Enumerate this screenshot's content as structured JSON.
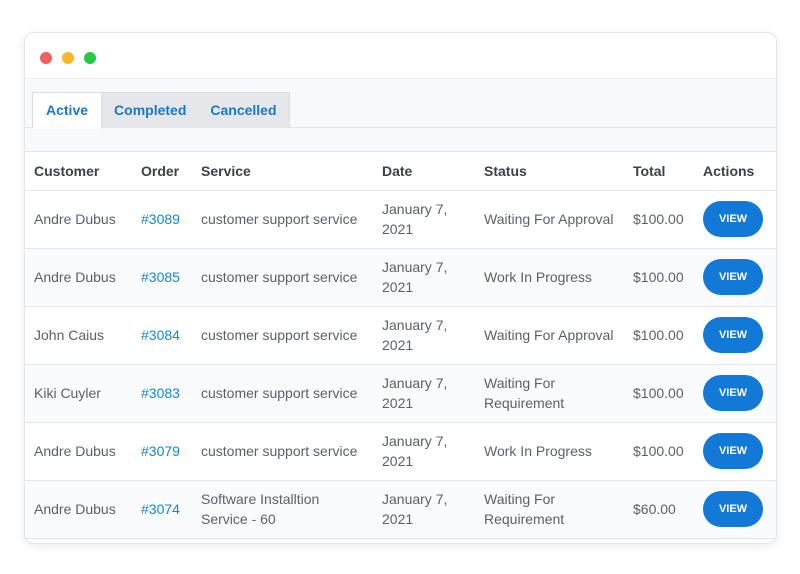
{
  "colors": {
    "dot_red": "#ef5f62",
    "dot_yellow": "#f5b82b",
    "dot_green": "#27c84a",
    "accent": "#1279d6",
    "link": "#1a86cf"
  },
  "tabs": [
    {
      "label": "Active"
    },
    {
      "label": "Completed"
    },
    {
      "label": "Cancelled"
    }
  ],
  "table": {
    "headers": {
      "customer": "Customer",
      "order": "Order",
      "service": "Service",
      "date": "Date",
      "status": "Status",
      "total": "Total",
      "actions": "Actions"
    },
    "rows": [
      {
        "customer": "Andre Dubus",
        "order": "#3089",
        "service": "customer support service",
        "date": "January 7, 2021",
        "status": "Waiting For Approval",
        "total": "$100.00",
        "action": "VIEW"
      },
      {
        "customer": "Andre Dubus",
        "order": "#3085",
        "service": "customer support service",
        "date": "January 7, 2021",
        "status": "Work In Progress",
        "total": "$100.00",
        "action": "VIEW"
      },
      {
        "customer": "John Caius",
        "order": "#3084",
        "service": "customer support service",
        "date": "January 7, 2021",
        "status": "Waiting For Approval",
        "total": "$100.00",
        "action": "VIEW"
      },
      {
        "customer": "Kiki Cuyler",
        "order": "#3083",
        "service": "customer support service",
        "date": "January 7, 2021",
        "status": "Waiting For Requirement",
        "total": "$100.00",
        "action": "VIEW"
      },
      {
        "customer": "Andre Dubus",
        "order": "#3079",
        "service": "customer support service",
        "date": "January 7, 2021",
        "status": "Work In Progress",
        "total": "$100.00",
        "action": "VIEW"
      },
      {
        "customer": "Andre Dubus",
        "order": "#3074",
        "service": "Software Installtion Service - 60",
        "date": "January 7, 2021",
        "status": "Waiting For Requirement",
        "total": "$60.00",
        "action": "VIEW"
      }
    ]
  }
}
